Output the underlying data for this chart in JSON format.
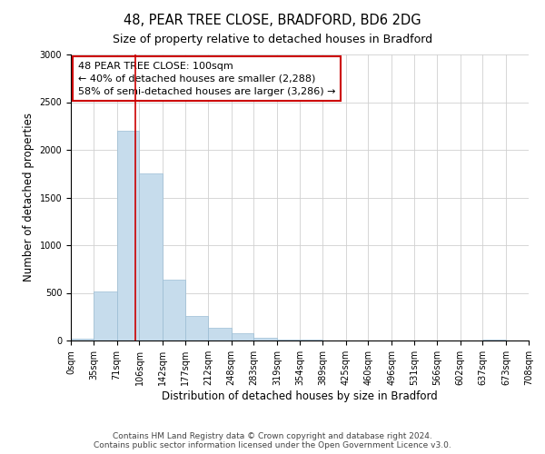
{
  "title1": "48, PEAR TREE CLOSE, BRADFORD, BD6 2DG",
  "title2": "Size of property relative to detached houses in Bradford",
  "xlabel": "Distribution of detached houses by size in Bradford",
  "ylabel": "Number of detached properties",
  "bin_edges": [
    0,
    35,
    71,
    106,
    142,
    177,
    212,
    248,
    283,
    319,
    354,
    389,
    425,
    460,
    496,
    531,
    566,
    602,
    637,
    673,
    708
  ],
  "bar_heights": [
    20,
    510,
    2200,
    1750,
    640,
    260,
    130,
    75,
    30,
    10,
    5,
    0,
    0,
    0,
    0,
    0,
    0,
    0,
    5,
    0
  ],
  "bar_color": "#c6dcec",
  "bar_edge_color": "#9bbdd4",
  "property_size": 100,
  "vline_color": "#cc0000",
  "annotation_text": "48 PEAR TREE CLOSE: 100sqm\n← 40% of detached houses are smaller (2,288)\n58% of semi-detached houses are larger (3,286) →",
  "annotation_box_edge": "#cc0000",
  "ylim": [
    0,
    3000
  ],
  "yticks": [
    0,
    500,
    1000,
    1500,
    2000,
    2500,
    3000
  ],
  "footer_line1": "Contains HM Land Registry data © Crown copyright and database right 2024.",
  "footer_line2": "Contains public sector information licensed under the Open Government Licence v3.0.",
  "title1_fontsize": 10.5,
  "title2_fontsize": 9,
  "axis_label_fontsize": 8.5,
  "tick_fontsize": 7,
  "annotation_fontsize": 8,
  "footer_fontsize": 6.5,
  "ylabel_fontsize": 8.5
}
